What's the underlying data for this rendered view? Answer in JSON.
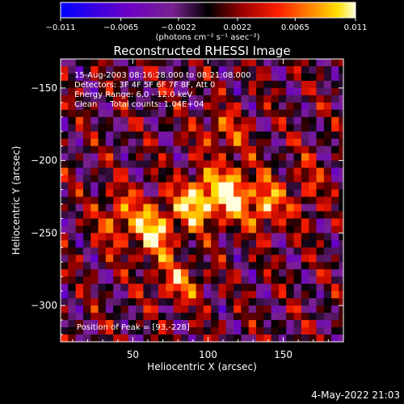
{
  "chart_data": {
    "type": "heatmap",
    "title": "Reconstructed RHESSI Image",
    "xlabel": "Heliocentric X (arcsec)",
    "ylabel": "Heliocentric Y (arcsec)",
    "xlim": [
      2,
      190
    ],
    "ylim": [
      -325,
      -130
    ],
    "x_ticks": [
      50,
      100,
      150
    ],
    "y_ticks": [
      -150,
      -200,
      -250,
      -300
    ],
    "colorbar": {
      "min": -0.011,
      "max": 0.011,
      "ticks": [
        "-0.011",
        "-0.0065",
        "-0.0022",
        "0.0022",
        "0.0065",
        "0.011"
      ],
      "tick_values": [
        -0.011,
        -0.0065,
        -0.0022,
        0.0022,
        0.0065,
        0.011
      ],
      "label": "(photons cm⁻² s⁻¹ asec⁻²)"
    },
    "annotations": [
      "15-Aug-2003 08:16:28.000 to 08:21:08.000",
      "Detectors: 3F 4F 5F 6F 7F 8F, Att 0",
      "Energy Range: 6.0 - 12.0 keV",
      "Clean     Total counts: 1.04E+04"
    ],
    "peak_label": "Position of Peak = [93,-228]",
    "peak": [
      93,
      -228
    ],
    "sources": [
      {
        "x": 65,
        "y": -248,
        "amp": 0.0095,
        "sx": 10,
        "sy": 14
      },
      {
        "x": 93,
        "y": -228,
        "amp": 0.011,
        "sx": 9,
        "sy": 12
      },
      {
        "x": 115,
        "y": -222,
        "amp": 0.0105,
        "sx": 9,
        "sy": 14
      },
      {
        "x": 138,
        "y": -230,
        "amp": 0.0085,
        "sx": 8,
        "sy": 12
      },
      {
        "x": 40,
        "y": -240,
        "amp": 0.006,
        "sx": 10,
        "sy": 14
      },
      {
        "x": 165,
        "y": -220,
        "amp": 0.004,
        "sx": 8,
        "sy": 16
      },
      {
        "x": 80,
        "y": -285,
        "amp": 0.006,
        "sx": 12,
        "sy": 10
      },
      {
        "x": 110,
        "y": -180,
        "amp": 0.005,
        "sx": 12,
        "sy": 10
      }
    ]
  },
  "footer": {
    "timestamp": "4-May-2022 21:03"
  }
}
